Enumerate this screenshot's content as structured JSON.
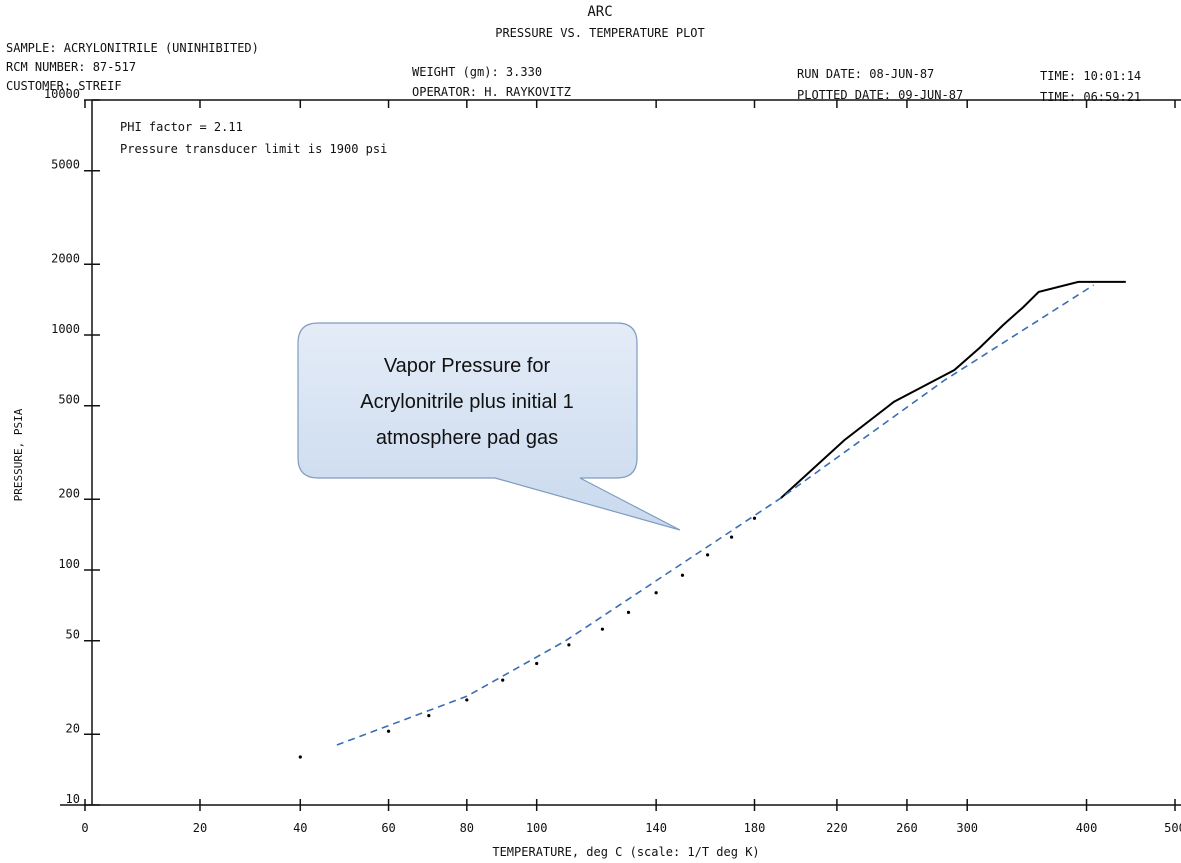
{
  "header": {
    "title": "ARC",
    "subtitle": "PRESSURE VS. TEMPERATURE PLOT",
    "sample": "SAMPLE: ACRYLONITRILE (UNINHIBITED)",
    "rcm": "RCM NUMBER: 87-517",
    "customer": "CUSTOMER: STREIF",
    "weight": "WEIGHT (gm):   3.330",
    "operator": "OPERATOR: H. RAYKOVITZ",
    "run_date": "RUN DATE: 08-JUN-87",
    "run_time": "TIME: 10:01:14",
    "plotted_date": "PLOTTED DATE: 09-JUN-87",
    "plotted_time": "TIME: 06:59:21"
  },
  "chart_data": {
    "type": "line",
    "annotations": [
      "PHI factor =  2.11",
      "Pressure transducer limit is 1900 psi"
    ],
    "callout": [
      "Vapor Pressure for",
      "Acrylonitrile plus initial 1",
      "atmosphere pad gas"
    ],
    "xlabel": "TEMPERATURE, deg C  (scale: 1/T deg K)",
    "ylabel": "PRESSURE, PSIA",
    "xscale": "reciprocal-kelvin",
    "yscale": "log",
    "xlim": [
      0,
      500
    ],
    "ylim": [
      10,
      10000
    ],
    "xticks": [
      0,
      20,
      40,
      60,
      80,
      100,
      140,
      180,
      220,
      260,
      300,
      400,
      500
    ],
    "yticks": [
      10,
      20,
      50,
      100,
      200,
      500,
      1000,
      2000,
      5000,
      10000
    ],
    "series": [
      {
        "color": "#000000",
        "style": "solid",
        "x": [
          192,
          224,
          252,
          291,
          309,
          327,
          343,
          356,
          392,
          441
        ],
        "y": [
          202,
          357,
          519,
          710,
          881,
          1104,
          1315,
          1525,
          1683,
          1683
        ]
      },
      {
        "color": "#3b6db3",
        "style": "dashed",
        "x": [
          48,
          80,
          109,
          192,
          284,
          407
        ],
        "y": [
          18,
          29,
          50,
          202,
          640,
          1630
        ]
      },
      {
        "color": "#000000",
        "style": "dots",
        "x": [
          40,
          60,
          70,
          80,
          90,
          100,
          110,
          121,
          130,
          140,
          150,
          160,
          170,
          180
        ],
        "y": [
          16,
          20.6,
          24,
          28,
          34,
          40,
          48,
          56,
          66,
          80,
          95,
          116,
          138,
          166
        ]
      }
    ]
  }
}
